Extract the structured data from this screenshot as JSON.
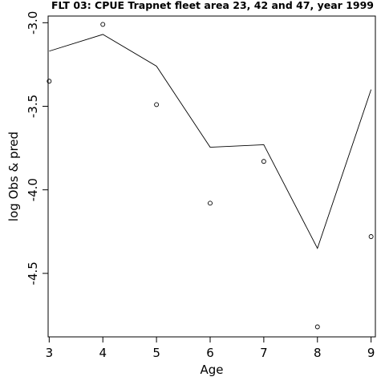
{
  "chart_data": {
    "type": "line",
    "title": "FLT 03: CPUE Trapnet fleet area 23, 42 and 47, year 1999",
    "xlabel": "Age",
    "ylabel": "log Obs & pred",
    "x": [
      3,
      4,
      5,
      6,
      7,
      8,
      9
    ],
    "x_ticks": [
      "3",
      "4",
      "5",
      "6",
      "7",
      "8",
      "9"
    ],
    "y_ticks": [
      "-3.0",
      "-3.5",
      "-4.0",
      "-4.5"
    ],
    "xlim": [
      2.98,
      9.08
    ],
    "ylim": [
      -4.88,
      -2.96
    ],
    "grid": false,
    "series": [
      {
        "style": "line",
        "values": [
          -3.17,
          -3.07,
          -3.26,
          -3.745,
          -3.73,
          -4.35,
          -3.4
        ]
      },
      {
        "style": "points",
        "values": [
          -3.35,
          -3.01,
          -3.49,
          -4.08,
          -3.83,
          -4.82,
          -4.28
        ]
      }
    ]
  }
}
